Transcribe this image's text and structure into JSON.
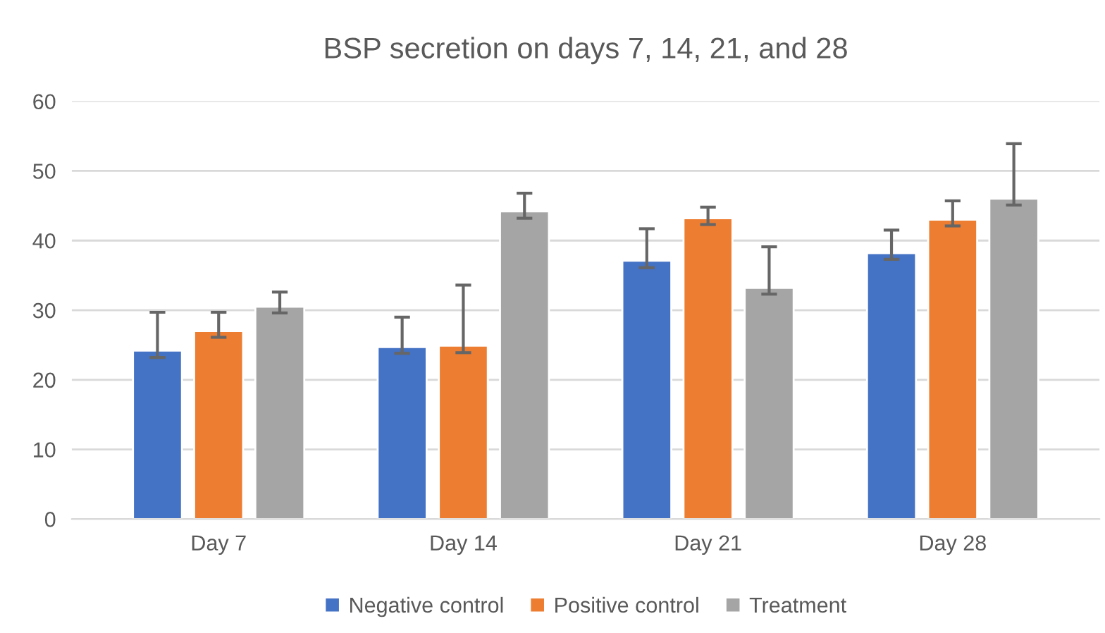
{
  "chart_data": {
    "type": "bar",
    "title": "BSP secretion on days 7, 14, 21, and 28",
    "categories": [
      "Day 7",
      "Day 14",
      "Day 21",
      "Day 28"
    ],
    "series": [
      {
        "name": "Negative control",
        "color": "#4472c4",
        "values": [
          24.2,
          24.7,
          37.1,
          38.2
        ],
        "errors": [
          [
            23.2,
            29.7
          ],
          [
            23.8,
            29.0
          ],
          [
            36.1,
            41.7
          ],
          [
            37.3,
            41.5
          ]
        ]
      },
      {
        "name": "Positive control",
        "color": "#ed7d31",
        "values": [
          27.0,
          24.9,
          43.2,
          43.0
        ],
        "errors": [
          [
            26.1,
            29.7
          ],
          [
            23.9,
            33.6
          ],
          [
            42.3,
            44.8
          ],
          [
            42.1,
            45.7
          ]
        ]
      },
      {
        "name": "Treatment",
        "color": "#a5a5a5",
        "values": [
          30.5,
          44.2,
          33.2,
          46.0
        ],
        "errors": [
          [
            29.6,
            32.6
          ],
          [
            43.2,
            46.8
          ],
          [
            32.3,
            39.1
          ],
          [
            45.1,
            53.9
          ]
        ]
      }
    ],
    "ylim": [
      0,
      60
    ],
    "yticks": [
      0,
      10,
      20,
      30,
      40,
      50,
      60
    ],
    "grid": "y",
    "legend": "bottom"
  }
}
